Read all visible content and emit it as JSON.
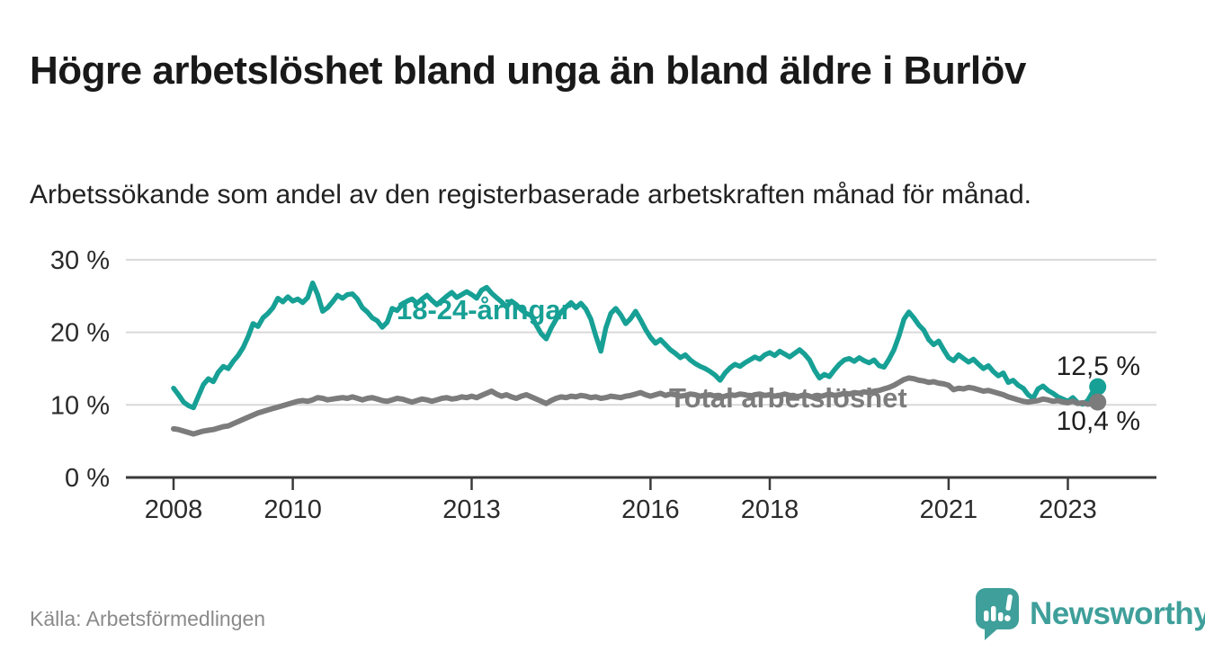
{
  "header": {
    "title": "Högre arbetslöshet bland unga än bland äldre i Burlöv",
    "subtitle": "Arbetssökande som andel av den registerbaserade arbetskraften månad för månad."
  },
  "chart_data": {
    "type": "line",
    "title": "Högre arbetslöshet bland unga än bland äldre i Burlöv",
    "x_unit": "month",
    "x_start": "2008-01",
    "x_end": "2023-07",
    "ylim": [
      0,
      30
    ],
    "grid": "horizontal",
    "legend_position": "inline-labels",
    "y_ticks": [
      {
        "value": 0,
        "label": "0 %"
      },
      {
        "value": 10,
        "label": "10 %"
      },
      {
        "value": 20,
        "label": "20 %"
      },
      {
        "value": 30,
        "label": "30 %"
      }
    ],
    "x_ticks": [
      {
        "year": 2008,
        "label": "2008"
      },
      {
        "year": 2010,
        "label": "2010"
      },
      {
        "year": 2013,
        "label": "2013"
      },
      {
        "year": 2016,
        "label": "2016"
      },
      {
        "year": 2018,
        "label": "2018"
      },
      {
        "year": 2021,
        "label": "2021"
      },
      {
        "year": 2023,
        "label": "2023"
      }
    ],
    "series": [
      {
        "name": "18-24-åringar",
        "label": "18-24-åringar",
        "color": "#17a095",
        "end_label": "12,5 %",
        "end_value": 12.5,
        "values": [
          12.3,
          11.4,
          10.4,
          9.9,
          9.6,
          11.2,
          12.8,
          13.6,
          13.2,
          14.5,
          15.3,
          15.0,
          16.0,
          16.8,
          17.9,
          19.4,
          21.2,
          20.8,
          22.0,
          22.6,
          23.4,
          24.7,
          24.2,
          24.9,
          24.3,
          24.6,
          24.1,
          24.8,
          26.8,
          25.2,
          22.9,
          23.4,
          24.2,
          25.1,
          24.7,
          25.2,
          25.3,
          24.6,
          23.4,
          22.8,
          22.0,
          21.6,
          20.7,
          21.4,
          23.3,
          23.0,
          23.8,
          24.3,
          24.6,
          24.0,
          24.6,
          25.1,
          24.4,
          23.8,
          24.4,
          25.0,
          25.5,
          24.8,
          25.2,
          25.6,
          25.2,
          24.7,
          25.8,
          26.2,
          25.4,
          24.8,
          24.2,
          23.5,
          24.3,
          23.8,
          23.1,
          22.6,
          22.3,
          21.0,
          19.8,
          19.1,
          20.6,
          21.8,
          22.8,
          23.5,
          24.1,
          23.4,
          24.0,
          23.2,
          21.8,
          19.5,
          17.4,
          20.6,
          22.6,
          23.3,
          22.4,
          21.2,
          21.9,
          22.9,
          21.7,
          20.4,
          19.3,
          18.5,
          19.0,
          18.3,
          17.6,
          17.1,
          16.5,
          16.9,
          16.2,
          15.7,
          15.3,
          15.0,
          14.6,
          14.1,
          13.4,
          14.4,
          15.1,
          15.6,
          15.3,
          15.8,
          16.2,
          16.6,
          16.3,
          16.9,
          17.2,
          16.8,
          17.4,
          17.0,
          16.6,
          17.1,
          17.6,
          17.0,
          16.2,
          14.8,
          13.7,
          14.2,
          13.9,
          14.8,
          15.6,
          16.2,
          16.4,
          16.0,
          16.5,
          16.1,
          15.8,
          16.2,
          15.4,
          15.2,
          16.3,
          17.6,
          19.5,
          21.8,
          22.8,
          22.0,
          21.0,
          20.3,
          19.0,
          18.3,
          18.8,
          17.6,
          16.5,
          16.1,
          16.9,
          16.4,
          15.9,
          16.3,
          15.6,
          15.0,
          15.4,
          14.6,
          14.0,
          14.4,
          13.1,
          13.4,
          12.7,
          12.3,
          11.4,
          10.9,
          12.2,
          12.6,
          12.0,
          11.6,
          11.1,
          10.8,
          10.5,
          11.0,
          10.3,
          10.1,
          10.6,
          11.8,
          12.5
        ]
      },
      {
        "name": "Total arbetslöshet",
        "label": "Total arbetslöshet",
        "color": "#7c7c7c",
        "end_label": "10,4 %",
        "end_value": 10.4,
        "values": [
          6.7,
          6.6,
          6.4,
          6.2,
          6.0,
          6.2,
          6.4,
          6.5,
          6.6,
          6.8,
          7.0,
          7.1,
          7.4,
          7.7,
          8.0,
          8.3,
          8.6,
          8.9,
          9.1,
          9.3,
          9.5,
          9.7,
          9.9,
          10.1,
          10.3,
          10.5,
          10.6,
          10.5,
          10.7,
          11.0,
          10.9,
          10.7,
          10.8,
          10.9,
          11.0,
          10.9,
          11.1,
          10.9,
          10.7,
          10.9,
          11.0,
          10.8,
          10.6,
          10.5,
          10.7,
          10.9,
          10.8,
          10.6,
          10.4,
          10.6,
          10.8,
          10.7,
          10.5,
          10.7,
          10.9,
          11.0,
          10.8,
          10.9,
          11.1,
          11.0,
          11.2,
          11.0,
          11.3,
          11.6,
          11.9,
          11.5,
          11.2,
          11.4,
          11.1,
          10.9,
          11.2,
          11.4,
          11.1,
          10.8,
          10.5,
          10.2,
          10.6,
          10.9,
          11.1,
          11.0,
          11.2,
          11.1,
          11.3,
          11.2,
          11.0,
          11.1,
          10.9,
          11.0,
          11.2,
          11.1,
          11.0,
          11.2,
          11.3,
          11.5,
          11.7,
          11.4,
          11.2,
          11.4,
          11.6,
          11.3,
          11.5,
          11.4,
          11.2,
          11.3,
          11.5,
          11.4,
          11.2,
          11.3,
          11.4,
          11.2,
          11.0,
          11.2,
          11.4,
          11.3,
          11.5,
          11.4,
          11.2,
          11.4,
          11.5,
          11.3,
          11.4,
          11.2,
          11.3,
          11.5,
          11.3,
          11.1,
          11.2,
          11.4,
          11.2,
          11.0,
          11.1,
          11.3,
          11.5,
          11.3,
          11.4,
          11.6,
          11.5,
          11.7,
          11.6,
          11.8,
          11.7,
          11.9,
          12.0,
          12.2,
          12.4,
          12.7,
          13.1,
          13.5,
          13.7,
          13.6,
          13.4,
          13.3,
          13.1,
          13.2,
          13.0,
          12.9,
          12.7,
          12.1,
          12.3,
          12.2,
          12.4,
          12.3,
          12.1,
          11.9,
          12.0,
          11.8,
          11.6,
          11.4,
          11.1,
          10.9,
          10.7,
          10.5,
          10.4,
          10.5,
          10.6,
          10.8,
          10.7,
          10.5,
          10.6,
          10.4,
          10.3,
          10.5,
          10.2,
          10.3,
          10.1,
          10.2,
          10.4
        ]
      }
    ]
  },
  "footer": {
    "source": "Källa: Arbetsförmedlingen",
    "brand": "Newsworthy"
  },
  "colors": {
    "accent_teal": "#17a095",
    "line_gray": "#7c7c7c",
    "logo_teal": "#3f9f9a",
    "grid": "#d9d9d9",
    "axis": "#3a3a3a",
    "tick_text": "#2b2b2b"
  }
}
